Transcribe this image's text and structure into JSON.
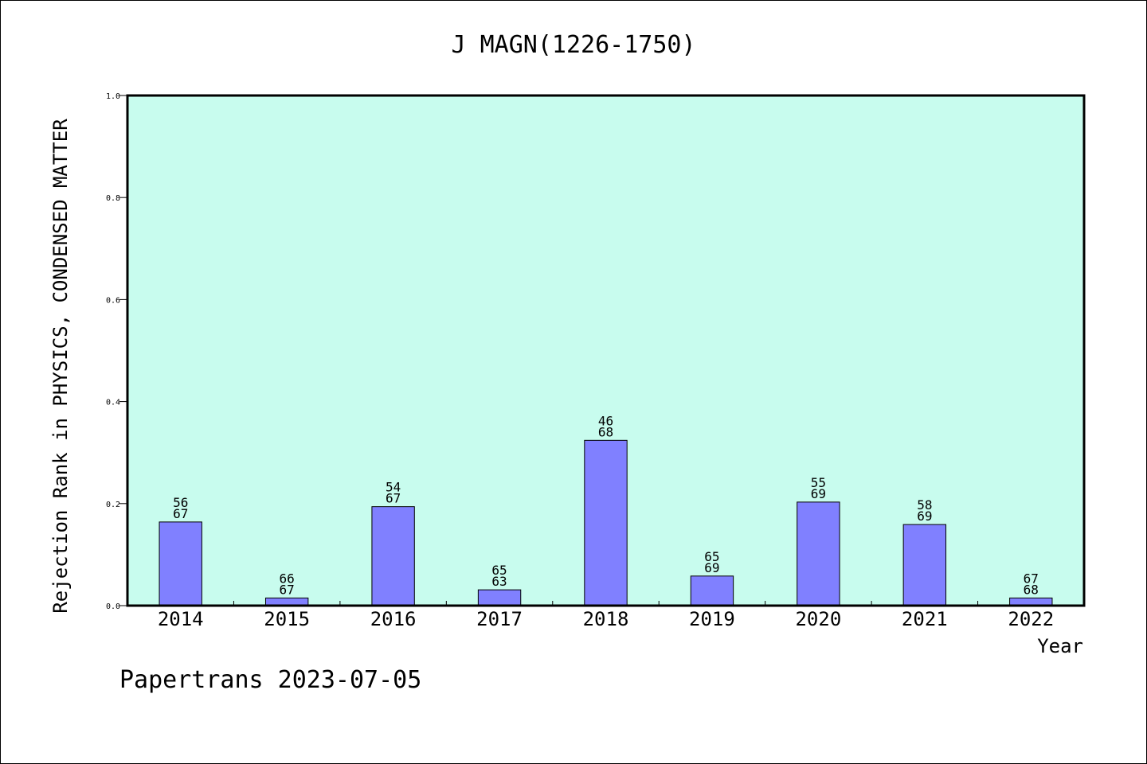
{
  "chart_data": {
    "type": "bar",
    "title": "J MAGN(1226-1750)",
    "xlabel": "Year",
    "ylabel": "Rejection Rank in PHYSICS, CONDENSED MATTER",
    "ylim": [
      0.0,
      1.0
    ],
    "yticks": [
      "0.0",
      "0.2",
      "0.4",
      "0.6",
      "0.8",
      "1.0"
    ],
    "categories": [
      "2014",
      "2015",
      "2016",
      "2017",
      "2018",
      "2019",
      "2020",
      "2021",
      "2022"
    ],
    "values": [
      0.164,
      0.015,
      0.194,
      0.031,
      0.324,
      0.058,
      0.203,
      0.159,
      0.015
    ],
    "labels_top": [
      "56",
      "66",
      "54",
      "65",
      "46",
      "65",
      "55",
      "58",
      "67"
    ],
    "labels_bottom": [
      "67",
      "67",
      "67",
      "63",
      "68",
      "69",
      "69",
      "69",
      "68"
    ],
    "grid": false,
    "plot_background": "#c8fcee",
    "bar_color": "#8080ff"
  },
  "footer": "Papertrans 2023-07-05"
}
